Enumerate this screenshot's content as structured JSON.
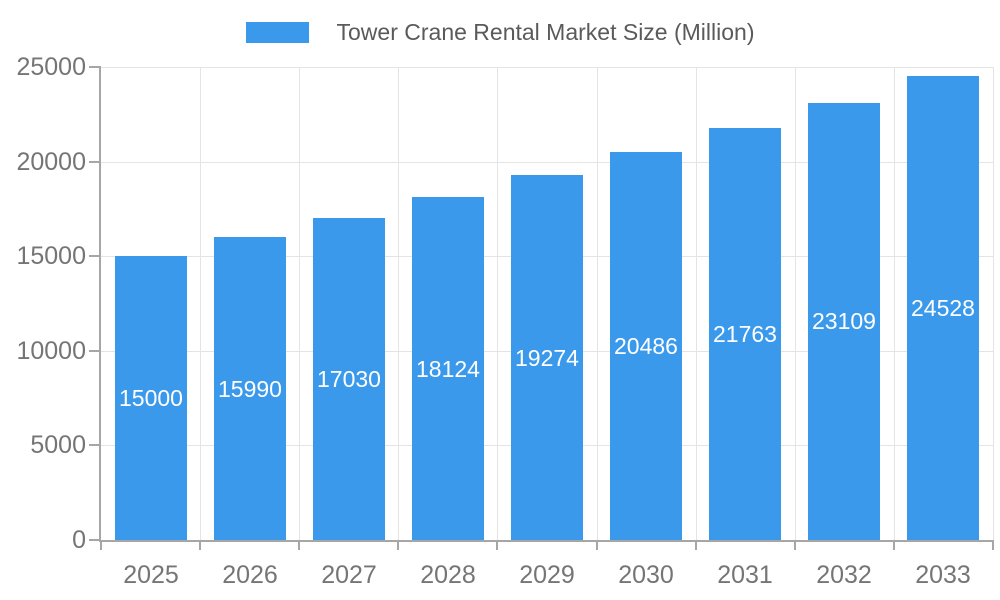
{
  "chart_data": {
    "type": "bar",
    "title": "Tower Crane Rental Market Size (Million)",
    "legend": {
      "position": "top",
      "label": "Tower Crane Rental Market Size (Million)"
    },
    "categories": [
      "2025",
      "2026",
      "2027",
      "2028",
      "2029",
      "2030",
      "2031",
      "2032",
      "2033"
    ],
    "values": [
      15000,
      15990,
      17030,
      18124,
      19274,
      20486,
      21763,
      23109,
      24528
    ],
    "xlabel": "",
    "ylabel": "",
    "ylim": [
      0,
      25000
    ],
    "yticks": [
      0,
      5000,
      10000,
      15000,
      20000,
      25000
    ],
    "grid": true,
    "value_labels": "centered-inside-bars",
    "colors": {
      "bar": "#3B99EC",
      "grid": "#E4E4E4",
      "axis": "#A6A6A6",
      "tick_label": "#757575",
      "legend_text": "#5A5A5A",
      "value_label": "#FFFFFF",
      "background": "#FFFFFF"
    }
  }
}
